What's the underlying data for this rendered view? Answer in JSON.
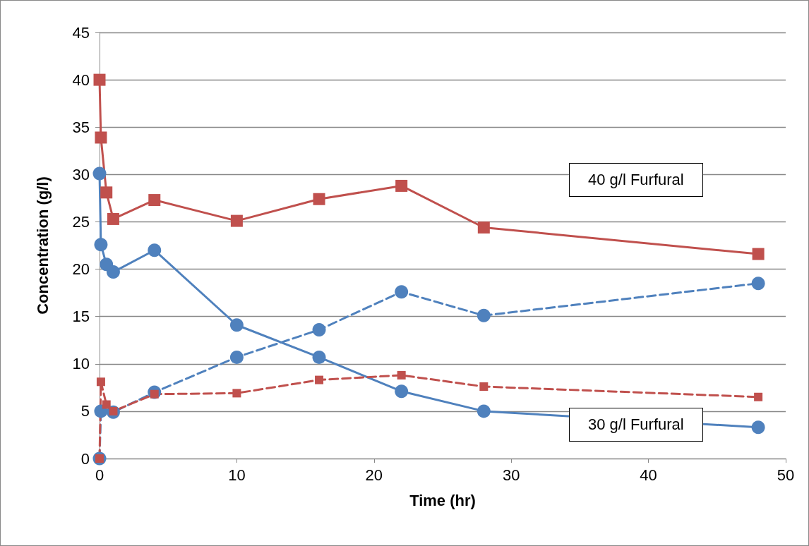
{
  "chart_data": {
    "type": "line",
    "xlabel": "Time (hr)",
    "ylabel": "Concentration (g/l)",
    "xlim": [
      0,
      50
    ],
    "xticks": [
      0,
      10,
      20,
      30,
      40,
      50
    ],
    "ylim": [
      0,
      45
    ],
    "yticks": [
      0,
      5,
      10,
      15,
      20,
      25,
      30,
      35,
      40,
      45
    ],
    "grid": "y",
    "annotations": [
      "40 g/l Furfural",
      "30 g/l Furfural"
    ],
    "series": [
      {
        "color": "#c0504d",
        "marker": "square",
        "line_style": "solid",
        "x": [
          0,
          0.1,
          0.5,
          1,
          4,
          10,
          16,
          22,
          28,
          48
        ],
        "values": [
          40,
          33.9,
          28.1,
          25.3,
          27.3,
          25.1,
          27.4,
          28.8,
          24.4,
          21.6
        ]
      },
      {
        "color": "#4f81bd",
        "marker": "circle",
        "line_style": "solid",
        "x": [
          0,
          0.1,
          0.5,
          1,
          4,
          10,
          16,
          22,
          28,
          48
        ],
        "values": [
          30.1,
          22.6,
          20.5,
          19.7,
          22,
          14.1,
          10.7,
          7.1,
          5,
          3.3
        ]
      },
      {
        "color": "#4f81bd",
        "marker": "circle",
        "line_style": "dashed",
        "x": [
          0,
          0.1,
          1,
          4,
          10,
          16,
          22,
          28,
          48
        ],
        "values": [
          0,
          5,
          4.9,
          7,
          10.7,
          13.6,
          17.6,
          15.1,
          18.5
        ]
      },
      {
        "color": "#c0504d",
        "marker": "square",
        "line_style": "dashed",
        "x": [
          0,
          0.1,
          0.5,
          1,
          4,
          10,
          16,
          22,
          28,
          48
        ],
        "values": [
          0,
          8.1,
          5.7,
          5,
          6.8,
          6.9,
          8.3,
          8.8,
          7.6,
          6.5
        ]
      }
    ]
  }
}
